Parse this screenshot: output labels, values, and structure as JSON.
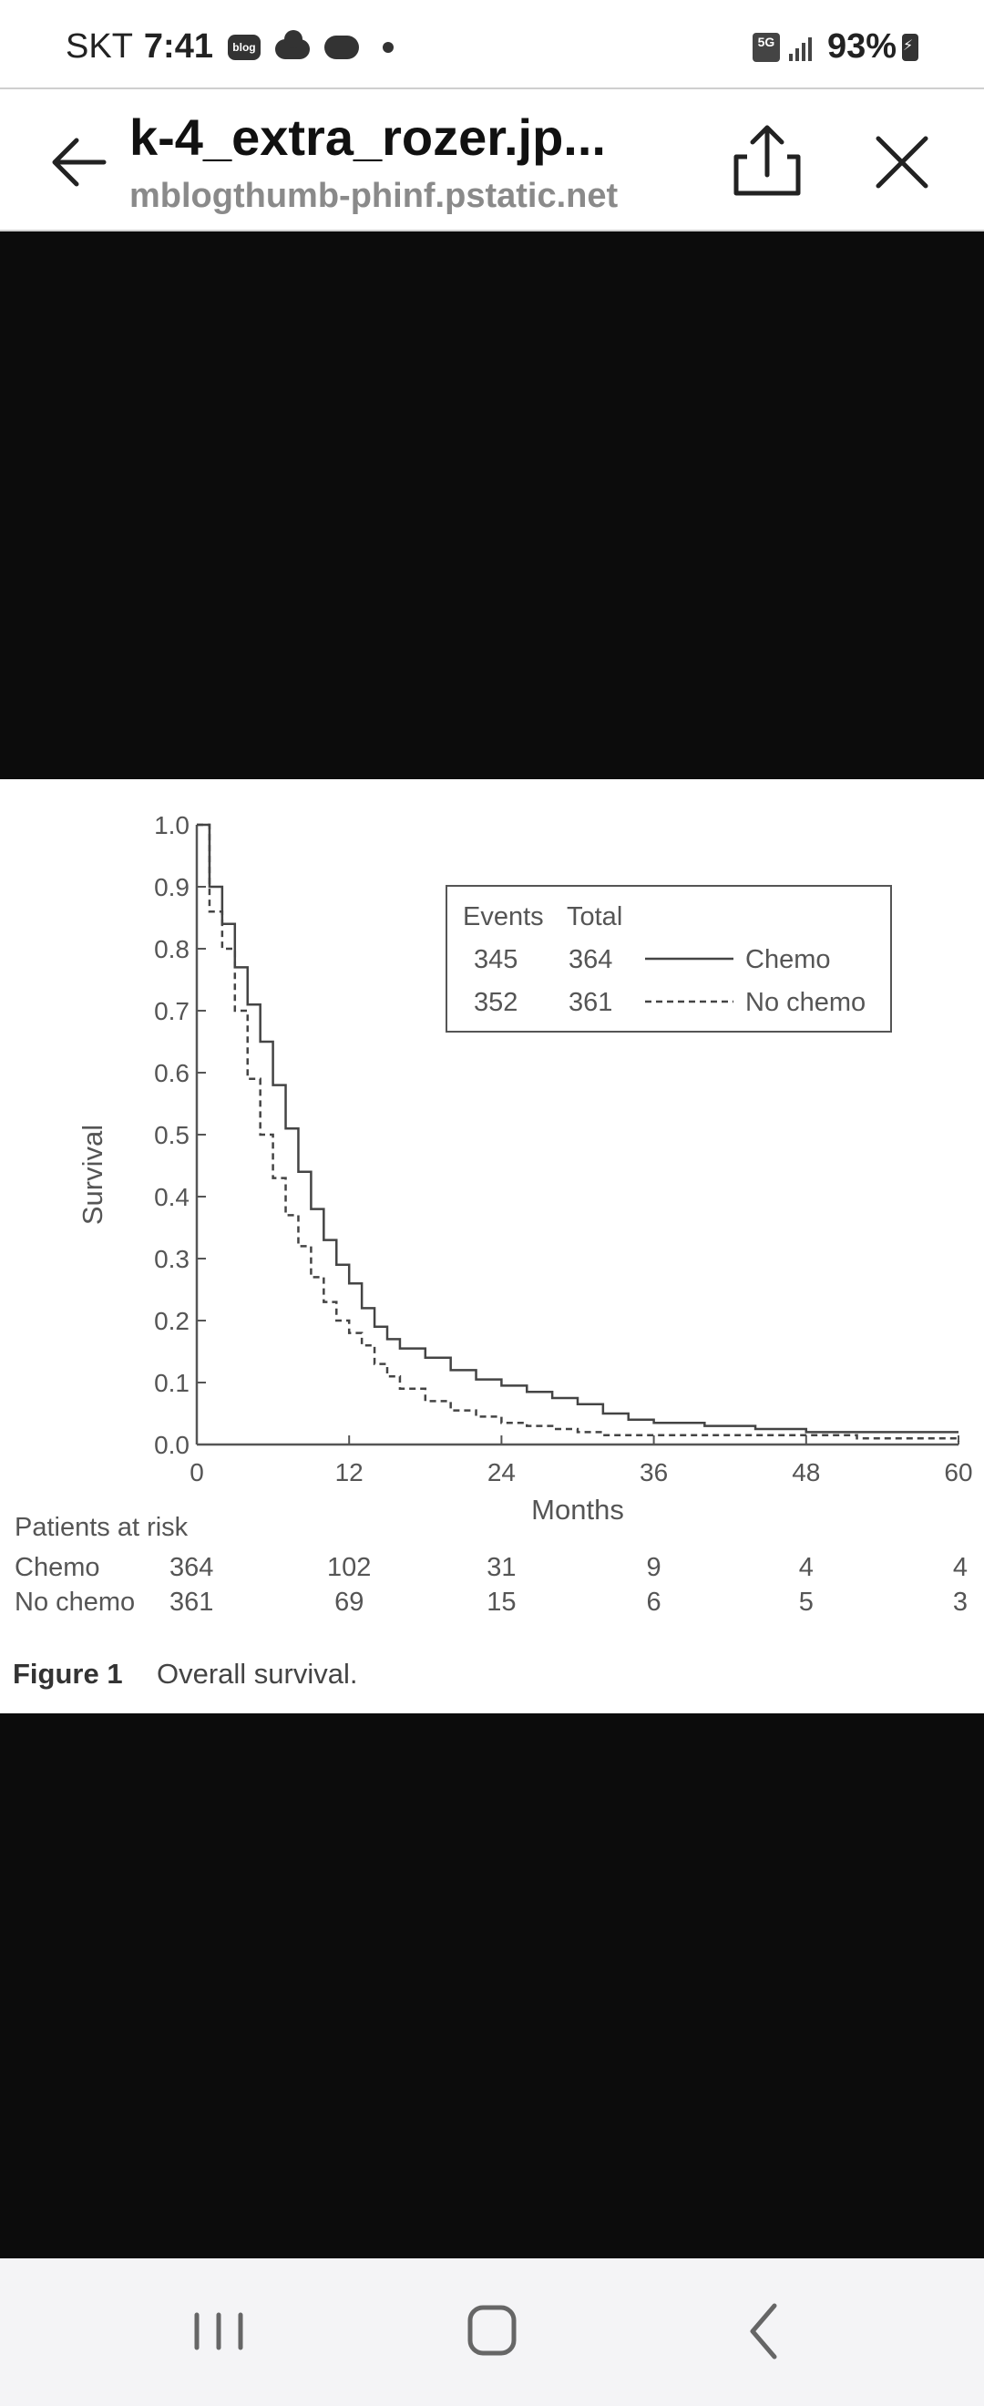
{
  "status_bar": {
    "carrier": "SKT",
    "time": "7:41",
    "blog_badge": "blog",
    "network": "5G",
    "battery": "93%",
    "icons": [
      "blog-icon",
      "cloud-icon",
      "chat-icon",
      "dot-icon",
      "5g-icon",
      "signal-icon",
      "battery-icon"
    ]
  },
  "header": {
    "title": "k-4_extra_rozer.jp...",
    "subtitle": "mblogthumb-phinf.pstatic.net",
    "icons": [
      "back-arrow-icon",
      "share-icon",
      "close-icon"
    ]
  },
  "figure": {
    "caption_label": "Figure 1",
    "caption_text": "Overall survival.",
    "legend": {
      "header_events": "Events",
      "header_total": "Total",
      "rows": [
        {
          "events": "345",
          "total": "364",
          "name": "Chemo",
          "style": "solid"
        },
        {
          "events": "352",
          "total": "361",
          "name": "No chemo",
          "style": "dashed"
        }
      ]
    },
    "risk_table": {
      "title": "Patients at risk",
      "rows": [
        {
          "label": "Chemo",
          "values": [
            "364",
            "102",
            "31",
            "9",
            "4",
            "4"
          ]
        },
        {
          "label": "No chemo",
          "values": [
            "361",
            "69",
            "15",
            "6",
            "5",
            "3"
          ]
        }
      ]
    }
  },
  "chart_data": {
    "type": "line",
    "xlabel": "Months",
    "ylabel": "Survival",
    "xlim": [
      0,
      60
    ],
    "ylim": [
      0,
      1.0
    ],
    "xticks": [
      "0",
      "12",
      "24",
      "36",
      "48",
      "60"
    ],
    "yticks": [
      "0.0",
      "0.1",
      "0.2",
      "0.3",
      "0.4",
      "0.5",
      "0.6",
      "0.7",
      "0.8",
      "0.9",
      "1.0"
    ],
    "series": [
      {
        "name": "Chemo",
        "x": [
          0,
          1,
          2,
          3,
          4,
          5,
          6,
          7,
          8,
          9,
          10,
          11,
          12,
          13,
          14,
          15,
          16,
          18,
          20,
          22,
          24,
          26,
          28,
          30,
          32,
          34,
          36,
          40,
          44,
          48,
          52,
          56,
          60
        ],
        "y": [
          1.0,
          0.9,
          0.84,
          0.77,
          0.71,
          0.65,
          0.58,
          0.51,
          0.44,
          0.38,
          0.33,
          0.29,
          0.26,
          0.22,
          0.19,
          0.17,
          0.155,
          0.14,
          0.12,
          0.105,
          0.095,
          0.085,
          0.075,
          0.065,
          0.05,
          0.04,
          0.035,
          0.03,
          0.025,
          0.02,
          0.02,
          0.02,
          0.02
        ]
      },
      {
        "name": "No chemo",
        "x": [
          0,
          1,
          2,
          3,
          4,
          5,
          6,
          7,
          8,
          9,
          10,
          11,
          12,
          13,
          14,
          15,
          16,
          18,
          20,
          22,
          24,
          26,
          28,
          30,
          32,
          34,
          36,
          40,
          44,
          48,
          52,
          56,
          60
        ],
        "y": [
          1.0,
          0.86,
          0.8,
          0.7,
          0.59,
          0.5,
          0.43,
          0.37,
          0.32,
          0.27,
          0.23,
          0.2,
          0.18,
          0.16,
          0.13,
          0.11,
          0.09,
          0.07,
          0.055,
          0.045,
          0.035,
          0.03,
          0.025,
          0.02,
          0.015,
          0.015,
          0.015,
          0.015,
          0.015,
          0.015,
          0.01,
          0.01,
          0.005
        ]
      }
    ]
  },
  "nav_bar": {
    "icons": [
      "recents-icon",
      "home-icon",
      "back-icon"
    ]
  }
}
